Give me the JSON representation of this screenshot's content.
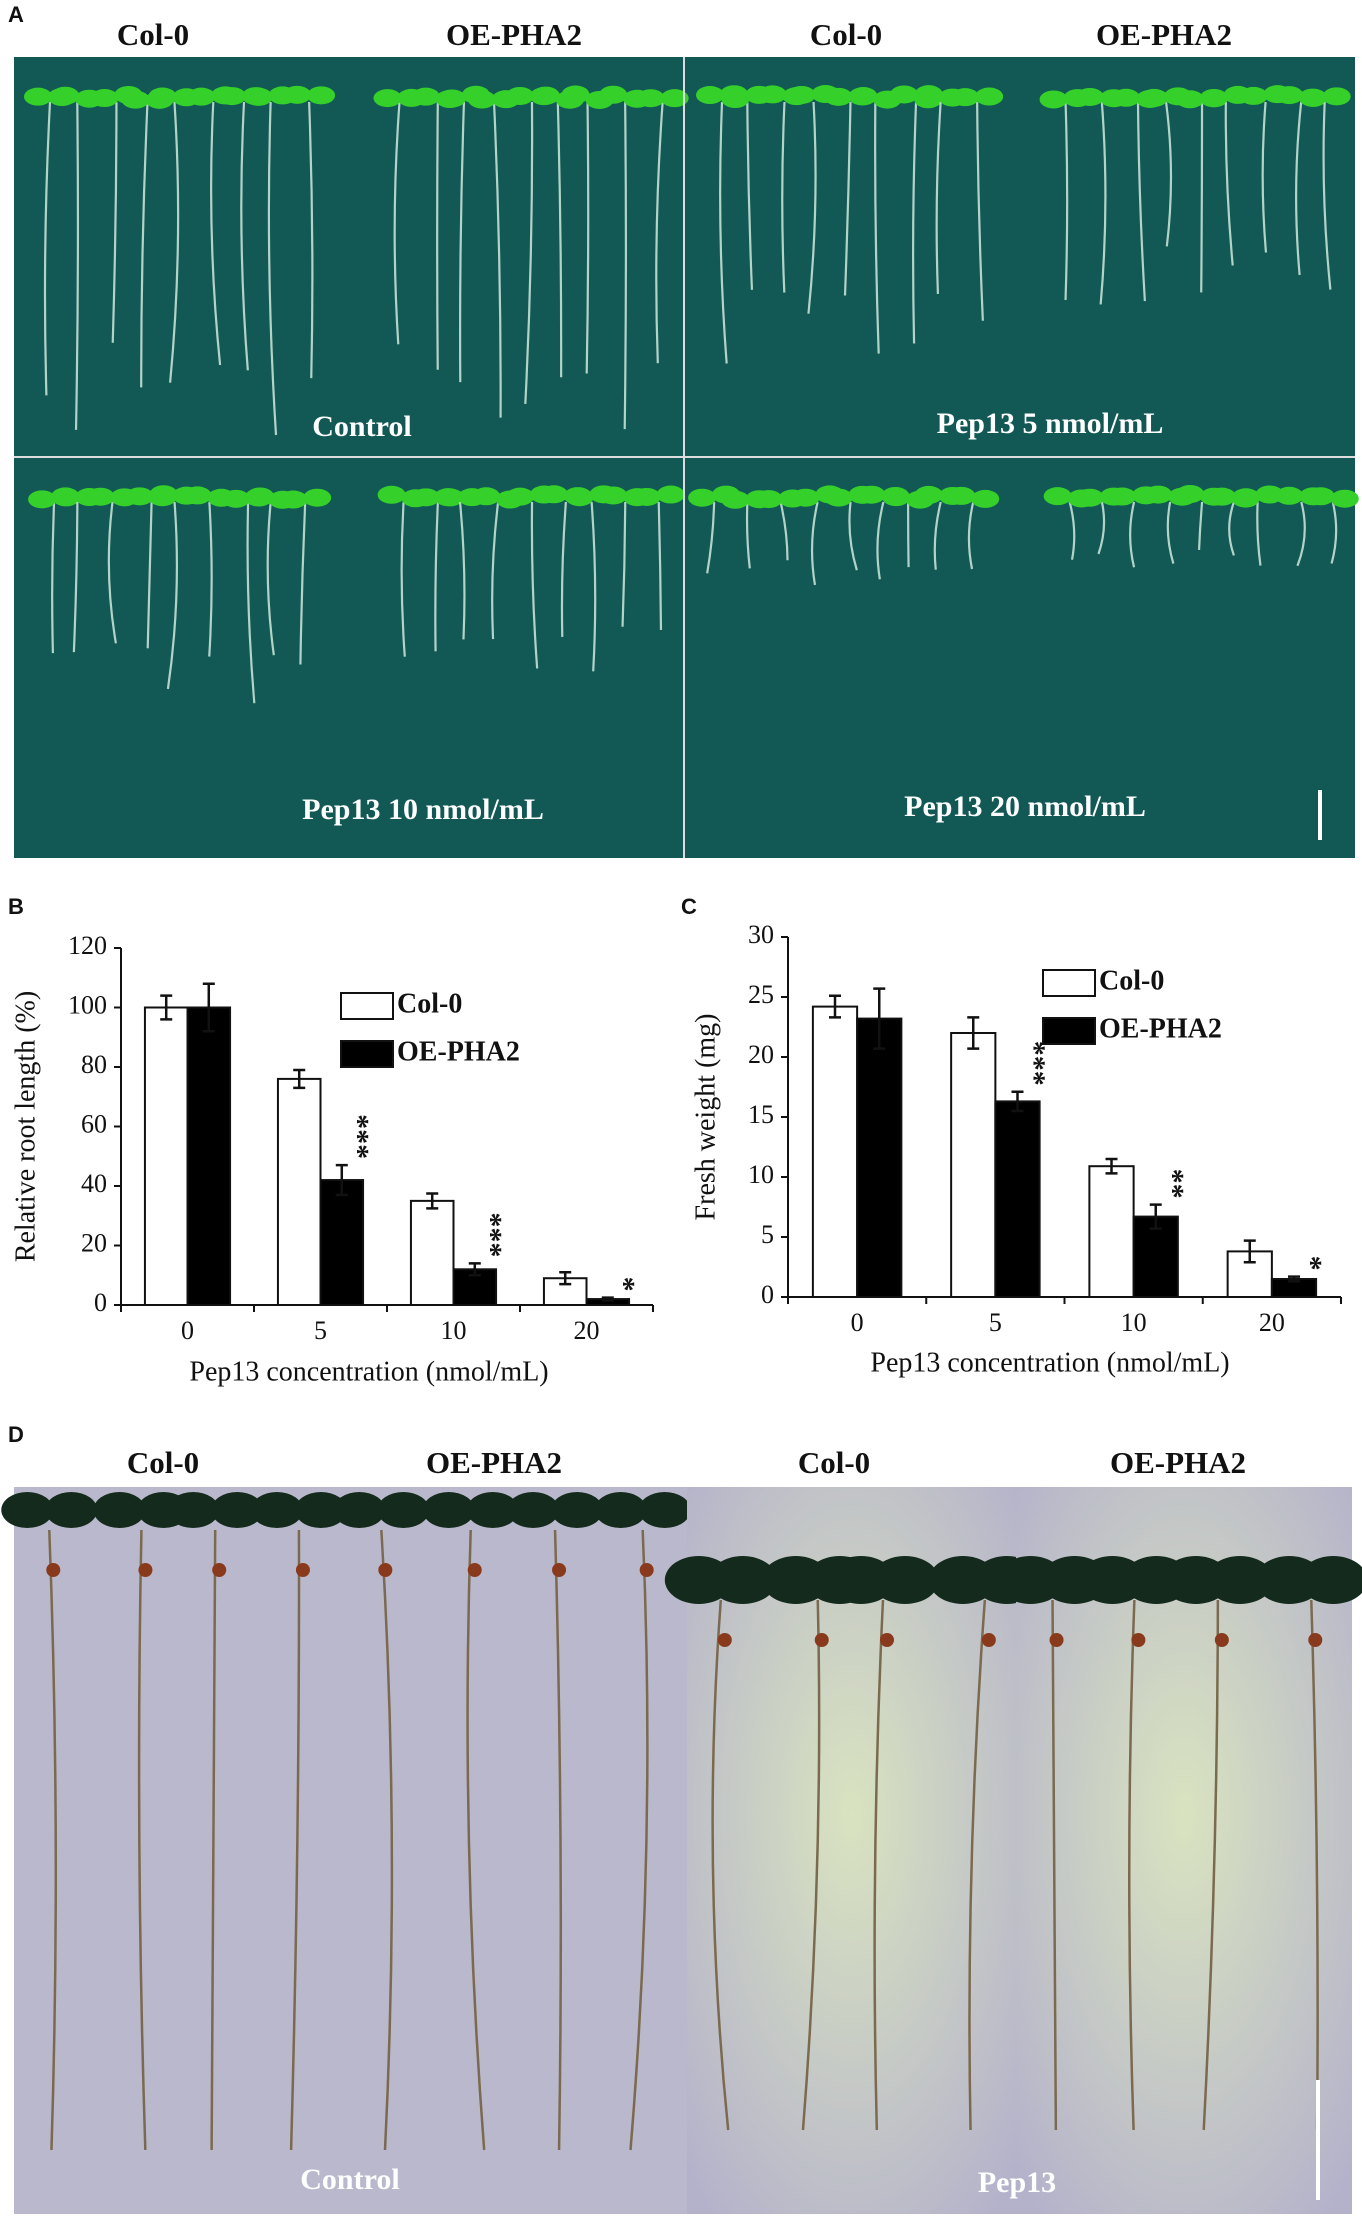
{
  "panel_letters": [
    "A",
    "B",
    "C",
    "D"
  ],
  "photo_a": {
    "column_labels": [
      "Col-0",
      "OE-PHA2",
      "Col-0",
      "OE-PHA2"
    ],
    "condition_labels": [
      "Control",
      "Pep13  5 nmol/mL",
      "Pep13  10 nmol/mL",
      "Pep13  20 nmol/mL"
    ]
  },
  "photo_d": {
    "column_labels": [
      "Col-0",
      "OE-PHA2",
      "Col-0",
      "OE-PHA2"
    ],
    "condition_labels": [
      "Control",
      "Pep13"
    ]
  },
  "chart_data": [
    {
      "type": "bar",
      "y_label": "Relative root  length (%)",
      "x_label": "Pep13 concentration (nmol/mL)",
      "categories": [
        "0",
        "5",
        "10",
        "20"
      ],
      "series": [
        {
          "name": "Col-0",
          "color": "#ffffff",
          "values": [
            100,
            76,
            35,
            9
          ],
          "errors": [
            4,
            3,
            2.5,
            2
          ]
        },
        {
          "name": "OE-PHA2",
          "color": "#000000",
          "values": [
            100,
            42,
            12,
            2
          ],
          "errors": [
            8,
            5,
            2,
            0.5
          ]
        }
      ],
      "significance": [
        null,
        "***",
        "***",
        "*"
      ],
      "ylim": [
        0,
        120
      ],
      "yticks": [
        0,
        20,
        40,
        60,
        80,
        100,
        120
      ],
      "legend": "center right"
    },
    {
      "type": "bar",
      "y_label": "Fresh weight (mg)",
      "x_label": "Pep13 concentration (nmol/mL)",
      "categories": [
        "0",
        "5",
        "10",
        "20"
      ],
      "series": [
        {
          "name": "Col-0",
          "color": "#ffffff",
          "values": [
            24.2,
            22,
            10.9,
            3.8
          ],
          "errors": [
            0.9,
            1.3,
            0.6,
            0.9
          ]
        },
        {
          "name": "OE-PHA2",
          "color": "#000000",
          "values": [
            23.2,
            16.3,
            6.7,
            1.5
          ],
          "errors": [
            2.5,
            0.8,
            1.0,
            0.2
          ]
        }
      ],
      "significance": [
        null,
        "***",
        "**",
        "*"
      ],
      "ylim": [
        0,
        30
      ],
      "yticks": [
        0,
        5,
        10,
        15,
        20,
        25,
        30
      ],
      "legend": "upper right"
    }
  ]
}
